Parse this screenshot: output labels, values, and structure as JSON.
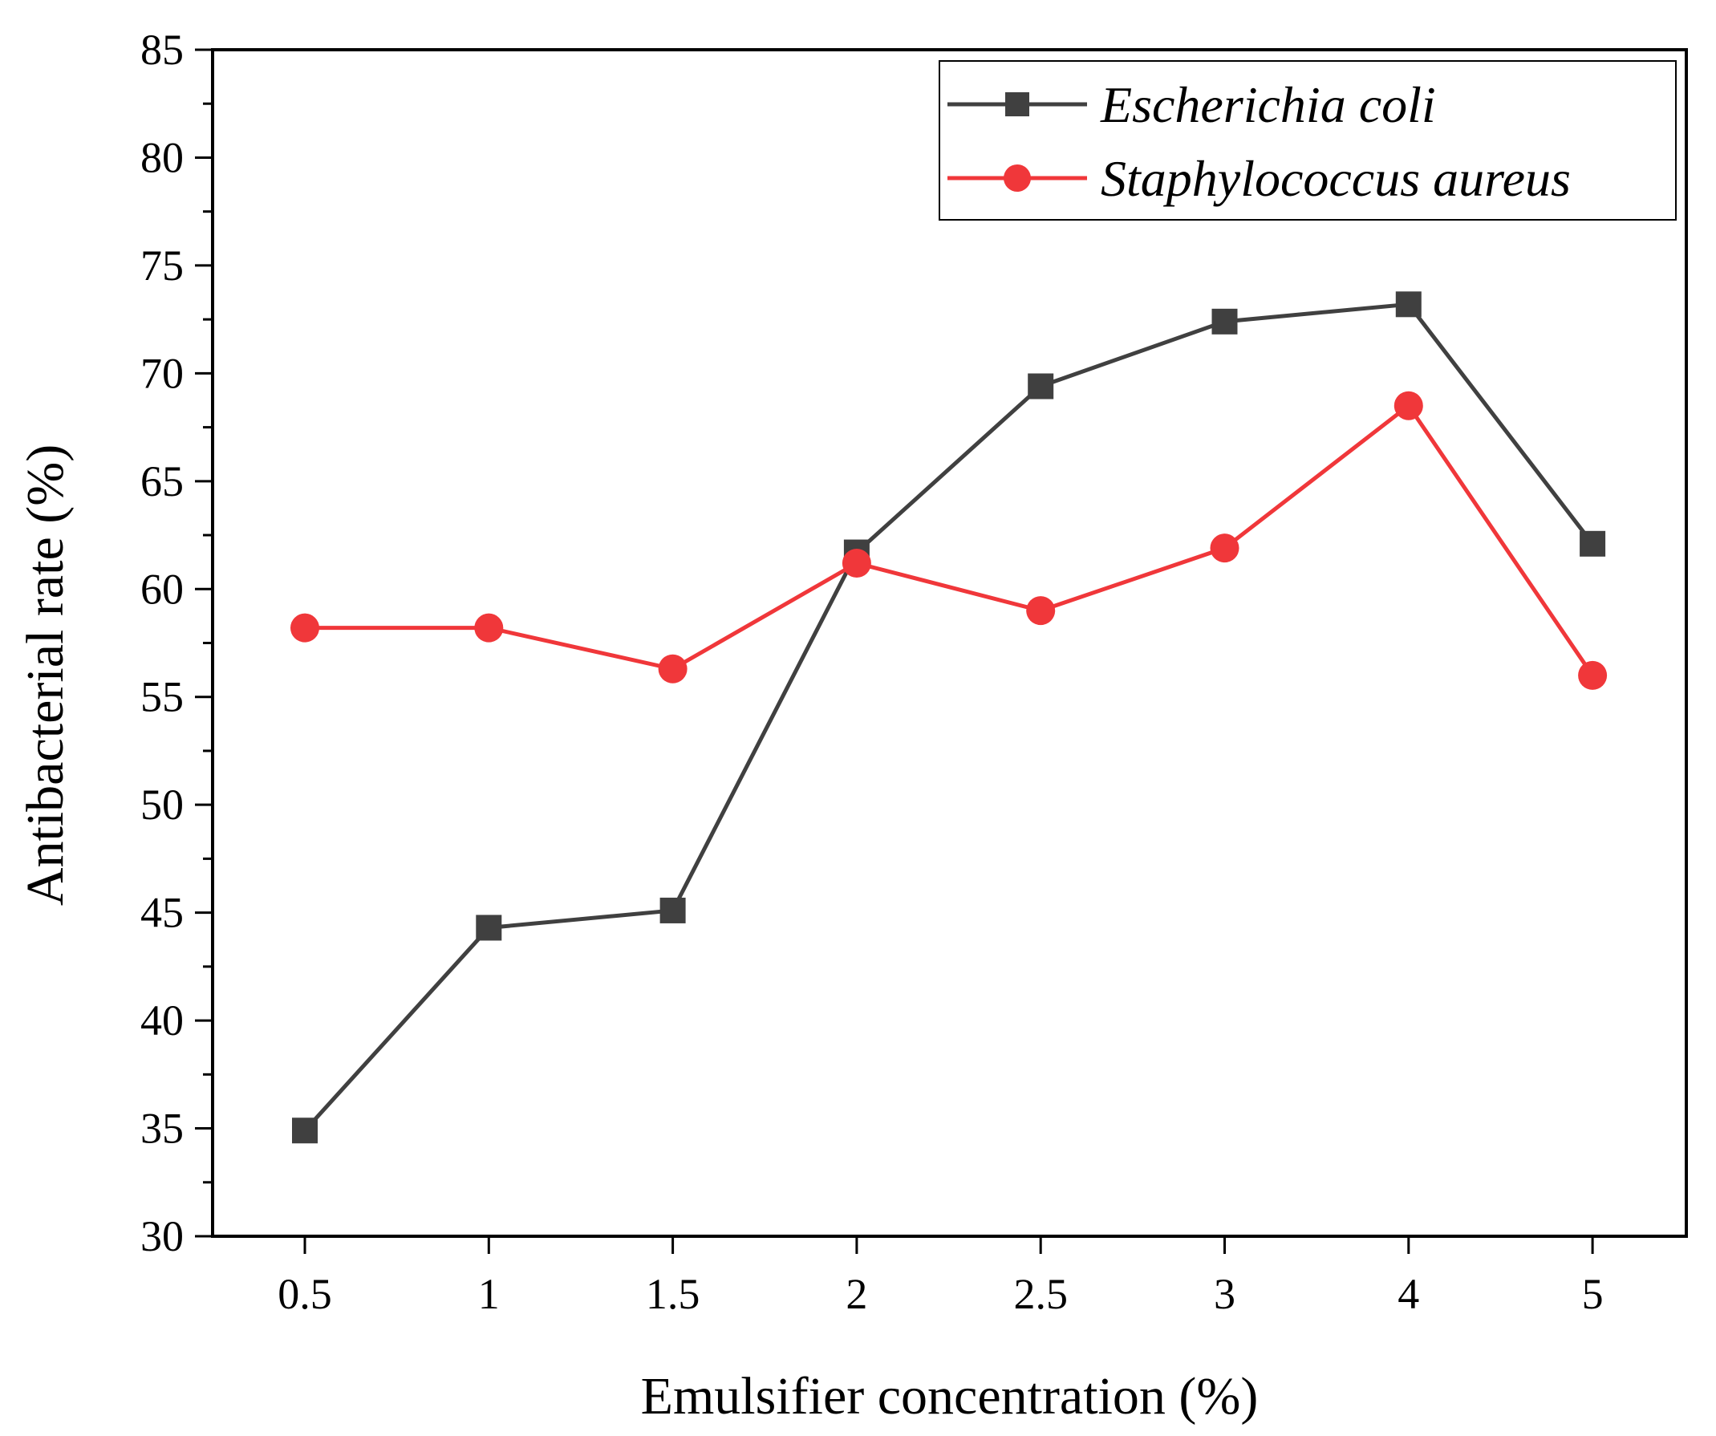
{
  "chart_data": {
    "type": "line",
    "title": "",
    "xlabel": "Emulsifier concentration (%)",
    "ylabel": "Antibacterial rate (%)",
    "categories": [
      "0.5",
      "1",
      "1.5",
      "2",
      "2.5",
      "3",
      "4",
      "5"
    ],
    "ylim": [
      30,
      85
    ],
    "yticks": [
      30,
      35,
      40,
      45,
      50,
      55,
      60,
      65,
      70,
      75,
      80,
      85
    ],
    "grid": false,
    "legend_position": "top-right",
    "series": [
      {
        "name": "Escherichia coli",
        "marker": "square",
        "color": "#404040",
        "values": [
          34.9,
          44.3,
          45.1,
          61.7,
          69.4,
          72.4,
          73.2,
          62.1
        ]
      },
      {
        "name": "Staphylococcus aureus",
        "marker": "circle",
        "color": "#f0373a",
        "values": [
          58.2,
          58.2,
          56.3,
          61.2,
          59.0,
          61.9,
          68.5,
          56.0
        ]
      }
    ]
  }
}
